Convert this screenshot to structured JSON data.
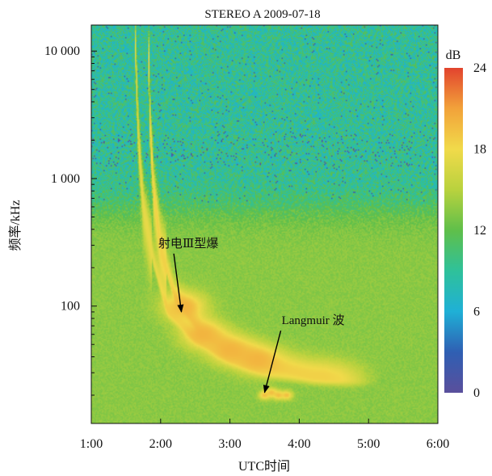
{
  "chart_data": {
    "type": "heatmap",
    "title": "STEREO A 2009-07-18",
    "xlabel": "UTC时间",
    "ylabel": "频率/kHz",
    "x_axis": {
      "unit": "hours UTC",
      "range": [
        1.0,
        6.0
      ],
      "ticks": [
        {
          "value": 1,
          "label": "1:00"
        },
        {
          "value": 2,
          "label": "2:00"
        },
        {
          "value": 3,
          "label": "3:00"
        },
        {
          "value": 4,
          "label": "4:00"
        },
        {
          "value": 5,
          "label": "5:00"
        },
        {
          "value": 6,
          "label": "6:00"
        }
      ]
    },
    "y_axis": {
      "scale": "log",
      "unit": "kHz",
      "range": [
        12,
        16000
      ],
      "ticks": [
        {
          "value": 100,
          "label": "100"
        },
        {
          "value": 1000,
          "label": "1 000"
        },
        {
          "value": 10000,
          "label": "10 000"
        }
      ]
    },
    "colorbar": {
      "label": "dB",
      "range": [
        0,
        24
      ],
      "ticks": [
        0,
        6,
        12,
        18,
        24
      ],
      "colors": [
        "#5a4f9c",
        "#2f5fb3",
        "#1fb0d6",
        "#2fc19a",
        "#5fbf4a",
        "#b9d23e",
        "#f1da4a",
        "#f2a23a",
        "#e2442e"
      ]
    },
    "background_levels_db": {
      "low_frequency": 13.5,
      "high_frequency": 9
    },
    "noise_boundary_khz": 600,
    "features": [
      {
        "name": "type_III_burst_1",
        "peak_db": 17.5,
        "track": [
          {
            "t": 1.63,
            "f": 14000
          },
          {
            "t": 1.68,
            "f": 2000
          },
          {
            "t": 1.75,
            "f": 600
          },
          {
            "t": 1.9,
            "f": 220
          },
          {
            "t": 2.1,
            "f": 90
          },
          {
            "t": 2.5,
            "f": 55
          },
          {
            "t": 3.0,
            "f": 38
          },
          {
            "t": 3.5,
            "f": 30
          },
          {
            "t": 4.2,
            "f": 27
          },
          {
            "t": 5.0,
            "f": 26
          }
        ]
      },
      {
        "name": "type_III_burst_2",
        "peak_db": 18.5,
        "track": [
          {
            "t": 1.83,
            "f": 8000
          },
          {
            "t": 1.85,
            "f": 2500
          },
          {
            "t": 1.9,
            "f": 800
          },
          {
            "t": 2.0,
            "f": 280
          },
          {
            "t": 2.2,
            "f": 120
          },
          {
            "t": 2.6,
            "f": 60
          },
          {
            "t": 3.1,
            "f": 42
          },
          {
            "t": 3.6,
            "f": 33
          },
          {
            "t": 4.2,
            "f": 28
          },
          {
            "t": 4.8,
            "f": 26
          }
        ]
      },
      {
        "name": "intense_region",
        "peak_db": 20,
        "points": [
          {
            "t": 2.35,
            "f": 100
          },
          {
            "t": 2.6,
            "f": 60
          },
          {
            "t": 3.0,
            "f": 45
          },
          {
            "t": 3.4,
            "f": 38
          }
        ]
      },
      {
        "name": "langmuir_waves",
        "peak_db": 19.5,
        "points": [
          {
            "t": 3.5,
            "f": 20
          },
          {
            "t": 3.6,
            "f": 21
          },
          {
            "t": 3.7,
            "f": 20
          },
          {
            "t": 3.82,
            "f": 20
          }
        ]
      }
    ],
    "annotations": [
      {
        "text": "射电Ⅲ型爆",
        "label_at": {
          "t": 2.4,
          "f": 290
        },
        "arrow_to": {
          "t": 2.3,
          "f": 90
        }
      },
      {
        "text": "Langmuir 波",
        "label_at": {
          "t": 4.2,
          "f": 72
        },
        "arrow_to": {
          "t": 3.5,
          "f": 21
        }
      }
    ],
    "grid": false,
    "legend": "colorbar-right"
  }
}
